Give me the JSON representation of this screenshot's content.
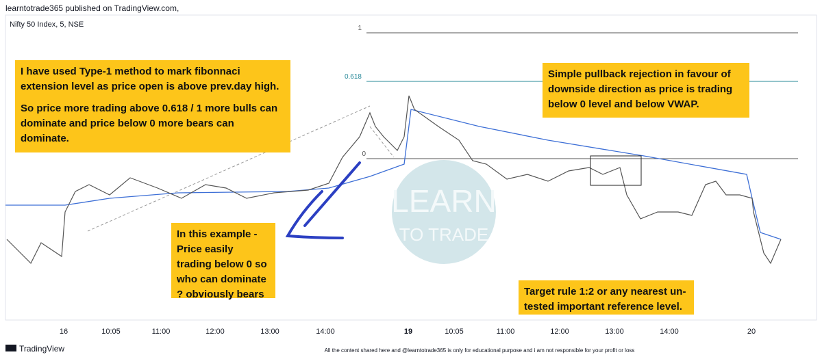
{
  "header": {
    "title": "learntotrade365 published on TradingView.com,"
  },
  "chart": {
    "symbol": "Nifty 50 Index, 5, NSE",
    "fib_levels": [
      "1",
      "0.618",
      "0"
    ],
    "x_axis_labels": [
      "16",
      "10:05",
      "11:00",
      "12:00",
      "13:00",
      "14:00",
      "19",
      "10:05",
      "11:00",
      "12:00",
      "13:00",
      "14:00",
      "20"
    ],
    "watermark": [
      "LEARN",
      "TO TRADE"
    ],
    "annotations": [
      "I have used Type-1 method to mark fibonnaci extension level as price open is above prev.day high.",
      "So price more trading above 0.618 / 1 more bulls can dominate and price below 0 more bears can dominate.",
      "In this example - Price easily trading below 0 so who can dominate ? obviously bears",
      "Simple pullback rejection in favour of downside direction as price is trading below 0 level and below VWAP.",
      "Target rule 1:2 or any nearest un-tested important reference level."
    ]
  },
  "footer": {
    "logo": "TradingView",
    "disclaimer": "All the content shared here and @learntotrade365 is only for educational purpose and i am not responsible for your profit or loss"
  }
}
